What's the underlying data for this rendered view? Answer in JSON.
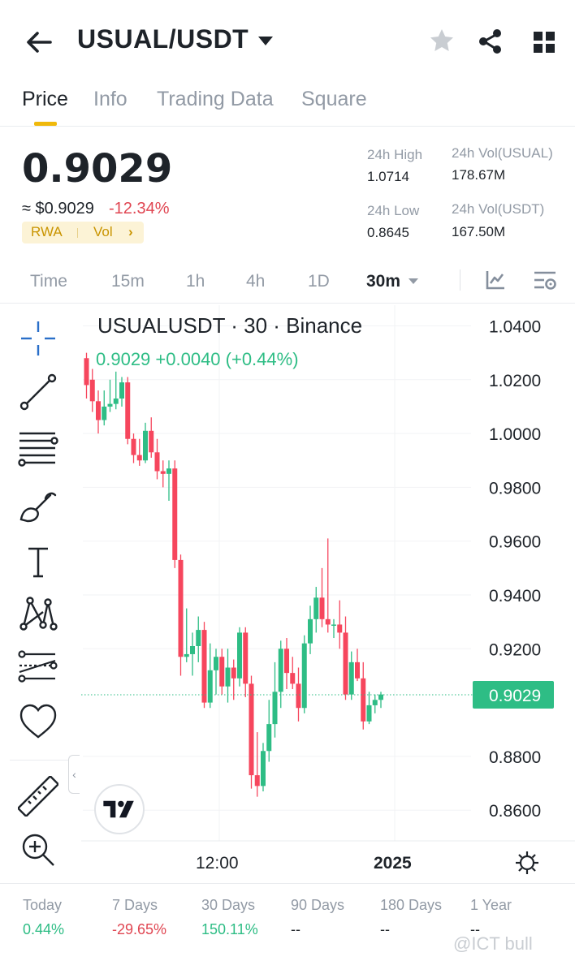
{
  "header": {
    "pair": "USUAL/USDT",
    "icons": [
      "back-arrow-icon",
      "dropdown-caret-icon",
      "favorite-star-icon",
      "share-icon",
      "grid-menu-icon"
    ]
  },
  "tabs": [
    "Price",
    "Info",
    "Trading Data",
    "Square"
  ],
  "active_tab": "Price",
  "price": {
    "last": "0.9029",
    "usd": "≈ $0.9029",
    "change": "-12.34%",
    "tags": [
      "RWA",
      "Vol"
    ]
  },
  "stats": {
    "high_label": "24h High",
    "high_value": "1.0714",
    "low_label": "24h Low",
    "low_value": "0.8645",
    "vol_base_label": "24h Vol(USUAL)",
    "vol_base_value": "178.67M",
    "vol_quote_label": "24h Vol(USDT)",
    "vol_quote_value": "167.50M"
  },
  "intervals": [
    "Time",
    "15m",
    "1h",
    "4h",
    "1D",
    "30m"
  ],
  "active_interval": "30m",
  "chart_data": {
    "type": "candlestick",
    "title": "USUALUSDT · 30 · Binance",
    "ohlc_readout": "0.9029 +0.0040 (+0.44%)",
    "last_price_label": "0.9029",
    "y_ticks": [
      "1.0400",
      "1.0200",
      "1.0000",
      "0.9800",
      "0.9600",
      "0.9400",
      "0.9200",
      "0.8800",
      "0.8600"
    ],
    "x_ticks": [
      "12:00",
      "2025"
    ],
    "ylim": [
      0.848,
      1.048
    ],
    "colors": {
      "up": "#2ebd85",
      "down": "#f6465d"
    },
    "candles": [
      [
        1.028,
        1.03,
        1.013,
        1.018
      ],
      [
        1.02,
        1.024,
        1.008,
        1.012
      ],
      [
        1.012,
        1.016,
        1.0,
        1.005
      ],
      [
        1.005,
        1.016,
        1.003,
        1.01
      ],
      [
        1.01,
        1.02,
        1.008,
        1.011
      ],
      [
        1.011,
        1.023,
        1.009,
        1.013
      ],
      [
        1.013,
        1.021,
        1.01,
        1.019
      ],
      [
        1.019,
        1.021,
        0.996,
        0.998
      ],
      [
        0.998,
        1.0,
        0.989,
        0.992
      ],
      [
        0.992,
        0.998,
        0.988,
        0.99
      ],
      [
        0.99,
        1.004,
        0.989,
        1.001
      ],
      [
        1.001,
        1.006,
        0.991,
        0.993
      ],
      [
        0.993,
        0.998,
        0.983,
        0.986
      ],
      [
        0.986,
        0.99,
        0.98,
        0.985
      ],
      [
        0.985,
        0.99,
        0.975,
        0.987
      ],
      [
        0.987,
        0.99,
        0.95,
        0.953
      ],
      [
        0.953,
        0.955,
        0.91,
        0.917
      ],
      [
        0.917,
        0.935,
        0.915,
        0.918
      ],
      [
        0.918,
        0.926,
        0.91,
        0.921
      ],
      [
        0.921,
        0.932,
        0.915,
        0.927
      ],
      [
        0.927,
        0.93,
        0.898,
        0.9
      ],
      [
        0.9,
        0.922,
        0.898,
        0.912
      ],
      [
        0.912,
        0.92,
        0.903,
        0.917
      ],
      [
        0.917,
        0.92,
        0.903,
        0.906
      ],
      [
        0.906,
        0.92,
        0.9,
        0.913
      ],
      [
        0.913,
        0.916,
        0.901,
        0.909
      ],
      [
        0.909,
        0.928,
        0.906,
        0.926
      ],
      [
        0.926,
        0.928,
        0.902,
        0.907
      ],
      [
        0.907,
        0.91,
        0.868,
        0.873
      ],
      [
        0.873,
        0.889,
        0.865,
        0.869
      ],
      [
        0.869,
        0.885,
        0.867,
        0.882
      ],
      [
        0.882,
        0.901,
        0.878,
        0.892
      ],
      [
        0.892,
        0.915,
        0.887,
        0.904
      ],
      [
        0.904,
        0.923,
        0.898,
        0.92
      ],
      [
        0.92,
        0.924,
        0.905,
        0.911
      ],
      [
        0.911,
        0.917,
        0.905,
        0.907
      ],
      [
        0.907,
        0.913,
        0.893,
        0.898
      ],
      [
        0.898,
        0.925,
        0.896,
        0.922
      ],
      [
        0.922,
        0.936,
        0.918,
        0.931
      ],
      [
        0.931,
        0.943,
        0.926,
        0.939
      ],
      [
        0.939,
        0.95,
        0.928,
        0.931
      ],
      [
        0.931,
        0.961,
        0.926,
        0.929
      ],
      [
        0.929,
        0.931,
        0.924,
        0.929
      ],
      [
        0.929,
        0.938,
        0.92,
        0.926
      ],
      [
        0.926,
        0.932,
        0.901,
        0.903
      ],
      [
        0.903,
        0.919,
        0.901,
        0.915
      ],
      [
        0.915,
        0.92,
        0.908,
        0.909
      ],
      [
        0.909,
        0.915,
        0.89,
        0.893
      ],
      [
        0.893,
        0.904,
        0.892,
        0.899
      ],
      [
        0.899,
        0.903,
        0.896,
        0.901
      ],
      [
        0.901,
        0.904,
        0.898,
        0.903
      ]
    ]
  },
  "toolbar_icons": [
    "crosshair-icon",
    "trend-line-icon",
    "fib-levels-icon",
    "brush-icon",
    "text-tool-icon",
    "pattern-icon",
    "prediction-icon",
    "favorites-heart-icon",
    "ruler-icon",
    "zoom-in-icon"
  ],
  "periods": [
    {
      "label": "Today",
      "value": "0.44%",
      "color": "#2ebd85"
    },
    {
      "label": "7 Days",
      "value": "-29.65%",
      "color": "#e04652"
    },
    {
      "label": "30 Days",
      "value": "150.11%",
      "color": "#2ebd85"
    },
    {
      "label": "90 Days",
      "value": "--",
      "color": "#1e2329"
    },
    {
      "label": "180 Days",
      "value": "--",
      "color": "#1e2329"
    },
    {
      "label": "1 Year",
      "value": "--",
      "color": "#1e2329"
    }
  ],
  "watermark": "@ICT bull"
}
